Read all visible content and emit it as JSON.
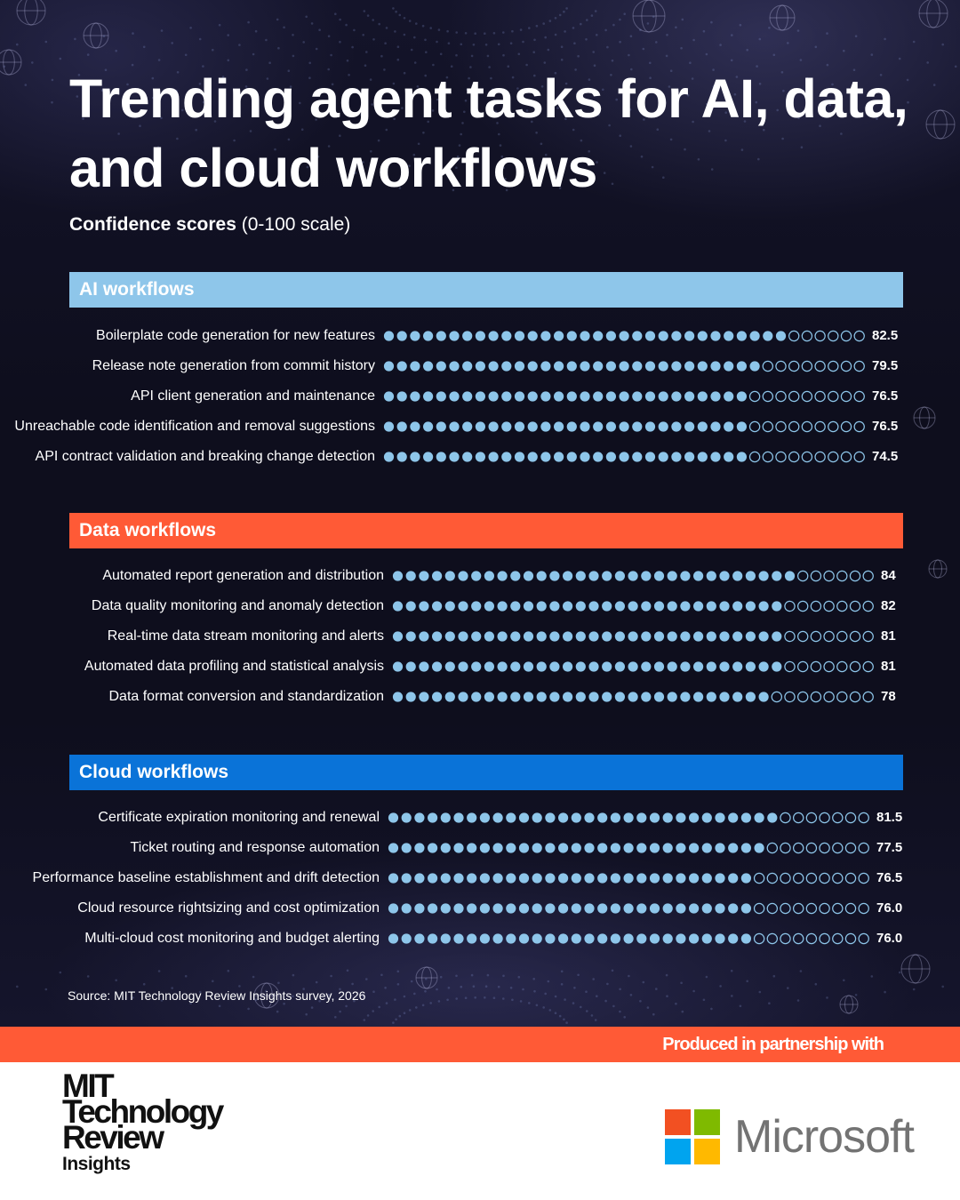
{
  "title": "Trending agent tasks for AI, data, and cloud workflows",
  "subtitle_bold": "Confidence scores",
  "subtitle_rest": " (0-100 scale)",
  "source": "Source: MIT Technology Review Insights survey, 2026",
  "partnership": "Produced in partnership with",
  "logos": {
    "mit_line1": "MIT",
    "mit_line2": "Technology",
    "mit_line3": "Review",
    "mit_line4": "Insights",
    "microsoft": "Microsoft",
    "microsoft_colors": [
      "#f25022",
      "#7fba00",
      "#00a4ef",
      "#ffb900"
    ]
  },
  "colors": {
    "ai": "#8ec6ea",
    "data": "#ff5a36",
    "cloud": "#0a73d8",
    "dot": "#8ec6ea"
  },
  "chart_data": {
    "type": "bar",
    "scale": [
      0,
      100
    ],
    "sections": [
      {
        "name": "AI workflows",
        "key": "ai",
        "items": [
          {
            "label": "Boilerplate code generation for new features",
            "value": 82.5,
            "display": "82.5"
          },
          {
            "label": "Release note generation from commit history",
            "value": 79.5,
            "display": "79.5"
          },
          {
            "label": "API client generation and maintenance",
            "value": 76.5,
            "display": "76.5"
          },
          {
            "label": "Unreachable code identification and removal suggestions",
            "value": 76.5,
            "display": "76.5"
          },
          {
            "label": "API contract validation and breaking change detection",
            "value": 74.5,
            "display": "74.5"
          }
        ]
      },
      {
        "name": "Data workflows",
        "key": "data",
        "items": [
          {
            "label": "Automated report generation and distribution",
            "value": 84,
            "display": "84"
          },
          {
            "label": "Data quality monitoring and anomaly detection",
            "value": 82,
            "display": "82"
          },
          {
            "label": "Real-time data stream monitoring and alerts",
            "value": 81,
            "display": "81"
          },
          {
            "label": "Automated data profiling and statistical analysis",
            "value": 81,
            "display": "81"
          },
          {
            "label": "Data format conversion and standardization",
            "value": 78,
            "display": "78"
          }
        ]
      },
      {
        "name": "Cloud workflows",
        "key": "cloud",
        "items": [
          {
            "label": "Certificate expiration monitoring and renewal",
            "value": 81.5,
            "display": "81.5"
          },
          {
            "label": "Ticket routing and response automation",
            "value": 77.5,
            "display": "77.5"
          },
          {
            "label": "Performance baseline establishment and drift detection",
            "value": 76.5,
            "display": "76.5"
          },
          {
            "label": "Cloud resource rightsizing and cost optimization",
            "value": 76.0,
            "display": "76.0"
          },
          {
            "label": "Multi-cloud cost monitoring and budget alerting",
            "value": 76.0,
            "display": "76.0"
          }
        ]
      }
    ]
  }
}
